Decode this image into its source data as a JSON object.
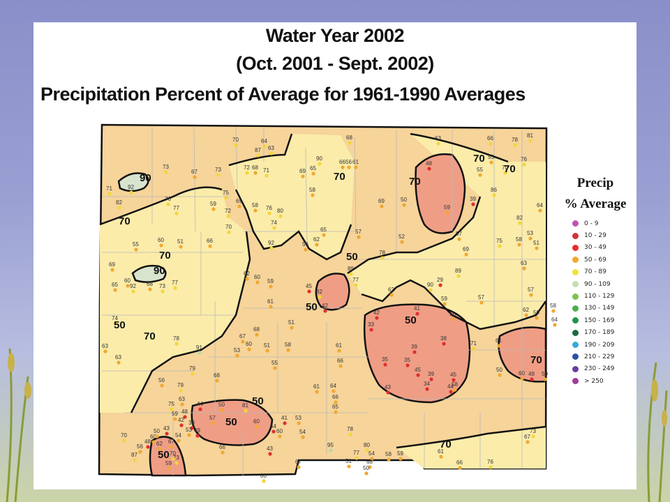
{
  "title": {
    "line1": "Water Year 2002",
    "line2": "(Oct. 2001 - Sept. 2002)",
    "line3": "Precipitation Percent of Average for 1961-1990 Averages"
  },
  "legend": {
    "title_line1": "Precip",
    "title_line2": "% Average",
    "items": [
      {
        "label": "0 - 9",
        "color": "#c052b6"
      },
      {
        "label": "10 - 29",
        "color": "#d7323f"
      },
      {
        "label": "30 - 49",
        "color": "#ee2a2a"
      },
      {
        "label": "50 - 69",
        "color": "#f4a72a"
      },
      {
        "label": "70 - 89",
        "color": "#f3e23a"
      },
      {
        "label": "90 - 109",
        "color": "#c5ddb0"
      },
      {
        "label": "110 - 129",
        "color": "#7dc24e"
      },
      {
        "label": "130 - 149",
        "color": "#4caf4b"
      },
      {
        "label": "150 - 169",
        "color": "#20944a"
      },
      {
        "label": "170 - 189",
        "color": "#1c6b3a"
      },
      {
        "label": "190 - 209",
        "color": "#39a8d8"
      },
      {
        "label": "210 - 229",
        "color": "#2e4fa6"
      },
      {
        "label": "230 - 249",
        "color": "#6b3ea2"
      },
      {
        "label": "> 250",
        "color": "#a23a9a"
      }
    ]
  },
  "map": {
    "colors": {
      "base": "#f6d49a",
      "light": "#fbecaa",
      "low": "#ef9e85",
      "high": "#d9e4cf",
      "contour": "#111111",
      "county": "#b9b9b9"
    },
    "contour_labels": [
      {
        "text": "90"
      },
      {
        "text": "70"
      },
      {
        "text": "70"
      },
      {
        "text": "90"
      },
      {
        "text": "70"
      },
      {
        "text": "70"
      },
      {
        "text": "70"
      },
      {
        "text": "50"
      },
      {
        "text": "50"
      },
      {
        "text": "70"
      },
      {
        "text": "50"
      },
      {
        "text": "70"
      },
      {
        "text": "50"
      },
      {
        "text": "50"
      },
      {
        "text": "50"
      },
      {
        "text": "70"
      },
      {
        "text": "70"
      },
      {
        "text": "50"
      }
    ],
    "stations": [
      {
        "value": "70",
        "color": "yellow"
      },
      {
        "value": "87",
        "color": "yellow"
      },
      {
        "value": "64",
        "color": "yellow"
      },
      {
        "value": "63",
        "color": "yellow"
      },
      {
        "value": "68",
        "color": "yellow"
      },
      {
        "value": "63",
        "color": "yellow"
      },
      {
        "value": "66",
        "color": "yellow"
      },
      {
        "value": "78",
        "color": "yellow"
      },
      {
        "value": "81",
        "color": "yellow"
      },
      {
        "value": "53",
        "color": "orange"
      },
      {
        "value": "70",
        "color": "yellow"
      },
      {
        "value": "76",
        "color": "yellow"
      },
      {
        "value": "48",
        "color": "red"
      },
      {
        "value": "55",
        "color": "orange"
      },
      {
        "value": "73",
        "color": "yellow"
      },
      {
        "value": "67",
        "color": "orange"
      },
      {
        "value": "73",
        "color": "yellow"
      },
      {
        "value": "72",
        "color": "yellow"
      },
      {
        "value": "68",
        "color": "orange"
      },
      {
        "value": "71",
        "color": "yellow"
      },
      {
        "value": "90",
        "color": "yellow"
      },
      {
        "value": "69",
        "color": "orange"
      },
      {
        "value": "65",
        "color": "orange"
      },
      {
        "value": "66",
        "color": "orange"
      },
      {
        "value": "56",
        "color": "orange"
      },
      {
        "value": "61",
        "color": "orange"
      },
      {
        "value": "71",
        "color": "yellow"
      },
      {
        "value": "92",
        "color": "yellow"
      },
      {
        "value": "82",
        "color": "yellow"
      },
      {
        "value": "76",
        "color": "yellow"
      },
      {
        "value": "77",
        "color": "yellow"
      },
      {
        "value": "75",
        "color": "yellow"
      },
      {
        "value": "59",
        "color": "orange"
      },
      {
        "value": "72",
        "color": "yellow"
      },
      {
        "value": "69",
        "color": "orange"
      },
      {
        "value": "58",
        "color": "orange"
      },
      {
        "value": "76",
        "color": "yellow"
      },
      {
        "value": "80",
        "color": "yellow"
      },
      {
        "value": "74",
        "color": "yellow"
      },
      {
        "value": "69",
        "color": "orange"
      },
      {
        "value": "50",
        "color": "orange"
      },
      {
        "value": "59",
        "color": "orange"
      },
      {
        "value": "39",
        "color": "red"
      },
      {
        "value": "86",
        "color": "yellow"
      },
      {
        "value": "82",
        "color": "yellow"
      },
      {
        "value": "64",
        "color": "orange"
      },
      {
        "value": "58",
        "color": "orange"
      },
      {
        "value": "63",
        "color": "orange"
      },
      {
        "value": "55",
        "color": "orange"
      },
      {
        "value": "60",
        "color": "orange"
      },
      {
        "value": "51",
        "color": "orange"
      },
      {
        "value": "66",
        "color": "orange"
      },
      {
        "value": "70",
        "color": "yellow"
      },
      {
        "value": "92",
        "color": "yellow"
      },
      {
        "value": "56",
        "color": "orange"
      },
      {
        "value": "62",
        "color": "orange"
      },
      {
        "value": "65",
        "color": "orange"
      },
      {
        "value": "57",
        "color": "orange"
      },
      {
        "value": "52",
        "color": "orange"
      },
      {
        "value": "57",
        "color": "orange"
      },
      {
        "value": "69",
        "color": "orange"
      },
      {
        "value": "75",
        "color": "yellow"
      },
      {
        "value": "53",
        "color": "orange"
      },
      {
        "value": "51",
        "color": "orange"
      },
      {
        "value": "69",
        "color": "orange"
      },
      {
        "value": "65",
        "color": "orange"
      },
      {
        "value": "60",
        "color": "orange"
      },
      {
        "value": "92",
        "color": "yellow"
      },
      {
        "value": "68",
        "color": "orange"
      },
      {
        "value": "73",
        "color": "yellow"
      },
      {
        "value": "77",
        "color": "yellow"
      },
      {
        "value": "62",
        "color": "orange"
      },
      {
        "value": "60",
        "color": "orange"
      },
      {
        "value": "59",
        "color": "orange"
      },
      {
        "value": "45",
        "color": "red"
      },
      {
        "value": "82",
        "color": "yellow"
      },
      {
        "value": "42",
        "color": "red"
      },
      {
        "value": "89",
        "color": "yellow"
      },
      {
        "value": "77",
        "color": "yellow"
      },
      {
        "value": "62",
        "color": "orange"
      },
      {
        "value": "89",
        "color": "yellow"
      },
      {
        "value": "90",
        "color": "yellow"
      },
      {
        "value": "29",
        "color": "red"
      },
      {
        "value": "59",
        "color": "orange"
      },
      {
        "value": "57",
        "color": "orange"
      },
      {
        "value": "57",
        "color": "orange"
      },
      {
        "value": "50",
        "color": "orange"
      },
      {
        "value": "62",
        "color": "orange"
      },
      {
        "value": "64",
        "color": "orange"
      },
      {
        "value": "58",
        "color": "orange"
      },
      {
        "value": "74",
        "color": "yellow"
      },
      {
        "value": "63",
        "color": "orange"
      },
      {
        "value": "78",
        "color": "yellow"
      },
      {
        "value": "91",
        "color": "high"
      },
      {
        "value": "79",
        "color": "yellow"
      },
      {
        "value": "68",
        "color": "orange"
      },
      {
        "value": "53",
        "color": "orange"
      },
      {
        "value": "60",
        "color": "orange"
      },
      {
        "value": "51",
        "color": "orange"
      },
      {
        "value": "55",
        "color": "orange"
      },
      {
        "value": "58",
        "color": "orange"
      },
      {
        "value": "61",
        "color": "orange"
      },
      {
        "value": "42",
        "color": "red"
      },
      {
        "value": "33",
        "color": "red"
      },
      {
        "value": "39",
        "color": "red"
      },
      {
        "value": "38",
        "color": "red"
      },
      {
        "value": "35",
        "color": "red"
      },
      {
        "value": "35",
        "color": "red"
      },
      {
        "value": "45",
        "color": "red"
      },
      {
        "value": "39",
        "color": "red"
      },
      {
        "value": "34",
        "color": "red"
      },
      {
        "value": "45",
        "color": "red"
      },
      {
        "value": "58",
        "color": "orange"
      },
      {
        "value": "44",
        "color": "red"
      },
      {
        "value": "71",
        "color": "yellow"
      },
      {
        "value": "61",
        "color": "orange"
      },
      {
        "value": "50",
        "color": "orange"
      },
      {
        "value": "60",
        "color": "orange"
      },
      {
        "value": "49",
        "color": "red"
      },
      {
        "value": "59",
        "color": "orange"
      },
      {
        "value": "41",
        "color": "red"
      },
      {
        "value": "56",
        "color": "orange"
      },
      {
        "value": "43",
        "color": "red"
      },
      {
        "value": "61",
        "color": "orange"
      },
      {
        "value": "64",
        "color": "orange"
      },
      {
        "value": "66",
        "color": "orange"
      },
      {
        "value": "65",
        "color": "orange"
      },
      {
        "value": "56",
        "color": "orange"
      },
      {
        "value": "79",
        "color": "yellow"
      },
      {
        "value": "63",
        "color": "orange"
      },
      {
        "value": "75",
        "color": "yellow"
      },
      {
        "value": "59",
        "color": "orange"
      },
      {
        "value": "48",
        "color": "red"
      },
      {
        "value": "44",
        "color": "red"
      },
      {
        "value": "38",
        "color": "red"
      },
      {
        "value": "42",
        "color": "red"
      },
      {
        "value": "53",
        "color": "orange"
      },
      {
        "value": "57",
        "color": "orange"
      },
      {
        "value": "50",
        "color": "orange"
      },
      {
        "value": "81",
        "color": "yellow"
      },
      {
        "value": "60",
        "color": "orange"
      },
      {
        "value": "44",
        "color": "red"
      },
      {
        "value": "41",
        "color": "red"
      },
      {
        "value": "53",
        "color": "orange"
      },
      {
        "value": "54",
        "color": "orange"
      },
      {
        "value": "43",
        "color": "red"
      },
      {
        "value": "60",
        "color": "orange"
      },
      {
        "value": "54",
        "color": "orange"
      },
      {
        "value": "49",
        "color": "red"
      },
      {
        "value": "43",
        "color": "red"
      },
      {
        "value": "60",
        "color": "orange"
      },
      {
        "value": "48",
        "color": "red"
      },
      {
        "value": "56",
        "color": "orange"
      },
      {
        "value": "87",
        "color": "yellow"
      },
      {
        "value": "50",
        "color": "orange"
      },
      {
        "value": "62",
        "color": "orange"
      },
      {
        "value": "67",
        "color": "orange"
      },
      {
        "value": "73",
        "color": "yellow"
      },
      {
        "value": "70",
        "color": "yellow"
      },
      {
        "value": "59",
        "color": "orange"
      },
      {
        "value": "66",
        "color": "orange"
      },
      {
        "value": "78",
        "color": "yellow"
      },
      {
        "value": "95",
        "color": "high"
      },
      {
        "value": "77",
        "color": "yellow"
      },
      {
        "value": "80",
        "color": "yellow"
      },
      {
        "value": "54",
        "color": "orange"
      },
      {
        "value": "68",
        "color": "orange"
      },
      {
        "value": "51",
        "color": "orange"
      },
      {
        "value": "50",
        "color": "orange"
      },
      {
        "value": "58",
        "color": "orange"
      },
      {
        "value": "59",
        "color": "orange"
      },
      {
        "value": "61",
        "color": "orange"
      },
      {
        "value": "66",
        "color": "orange"
      },
      {
        "value": "76",
        "color": "yellow"
      },
      {
        "value": "73",
        "color": "yellow"
      },
      {
        "value": "67",
        "color": "orange"
      },
      {
        "value": "63",
        "color": "orange"
      },
      {
        "value": "70",
        "color": "yellow"
      },
      {
        "value": "80",
        "color": "yellow"
      },
      {
        "value": "78",
        "color": "yellow"
      },
      {
        "value": "67",
        "color": "orange"
      },
      {
        "value": "66",
        "color": "orange"
      },
      {
        "value": "58",
        "color": "orange"
      },
      {
        "value": "67",
        "color": "orange"
      },
      {
        "value": "68",
        "color": "orange"
      },
      {
        "value": "61",
        "color": "orange"
      },
      {
        "value": "51",
        "color": "orange"
      }
    ]
  }
}
